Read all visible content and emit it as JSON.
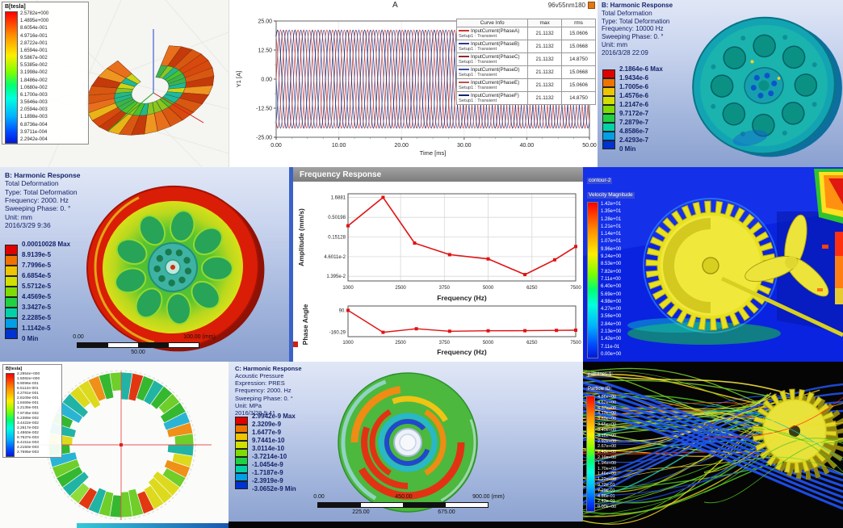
{
  "panels": {
    "field_plot_top_left": {
      "legend_title": "B[tesla]",
      "legend_values": [
        "2.5782e+000",
        "1.4895e+000",
        "8.6054e-001",
        "4.9716e-001",
        "2.8722e-001",
        "1.6594e-001",
        "9.5867e-002",
        "5.5385e-002",
        "3.1998e-002",
        "1.8486e-002",
        "1.0680e-002",
        "6.1700e-003",
        "3.5646e-003",
        "2.0594e-003",
        "1.1898e-003",
        "6.8736e-004",
        "3.9711e-004",
        "2.2942e-004"
      ]
    },
    "current_chart": {
      "title": "A",
      "corner_label": "96v55nm180",
      "ylabel": "Y1 [A]",
      "xlabel": "Time [ms]",
      "y_ticks": [
        "25.00",
        "12.50",
        "0.00",
        "-12.50",
        "-25.00"
      ],
      "x_ticks": [
        "0.00",
        "10.00",
        "20.00",
        "30.00",
        "40.00",
        "50.00"
      ],
      "legend_headers": [
        "Curve Info",
        "max",
        "rms"
      ],
      "legend_rows": [
        {
          "name": "InputCurrent(PhaseA)",
          "setup": "Setup1 : Transient",
          "max": "21.1132",
          "rms": "15.0606",
          "color": "#cc3333"
        },
        {
          "name": "InputCurrent(PhaseB)",
          "setup": "Setup1 : Transient",
          "max": "21.1132",
          "rms": "15.0668",
          "color": "#2b3a8f"
        },
        {
          "name": "InputCurrent(PhaseC)",
          "setup": "Setup1 : Transient",
          "max": "21.1132",
          "rms": "14.8750",
          "color": "#8f2b2b"
        },
        {
          "name": "InputCurrent(PhaseD)",
          "setup": "Setup1 : Transient",
          "max": "21.1132",
          "rms": "15.0668",
          "color": "#3b4fa0"
        },
        {
          "name": "InputCurrent(PhaseE)",
          "setup": "Setup1 : Transient",
          "max": "21.1132",
          "rms": "15.0606",
          "color": "#c05050"
        },
        {
          "name": "InputCurrent(PhaseF)",
          "setup": "Setup1 : Transient",
          "max": "21.1132",
          "rms": "14.8750",
          "color": "#16246e"
        }
      ]
    },
    "harmonic_wheel_right": {
      "header": [
        "B: Harmonic Response",
        "Total Deformation",
        "Type: Total Deformation",
        "Frequency: 10000 Hz",
        "Sweeping Phase: 0. °",
        "Unit: mm",
        "2016/3/28 22:09"
      ],
      "legend": [
        "2.1864e-6 Max",
        "1.9434e-6",
        "1.7005e-6",
        "1.4576e-6",
        "1.2147e-6",
        "9.7172e-7",
        "7.2879e-7",
        "4.8586e-7",
        "2.4293e-7",
        "0 Min"
      ]
    },
    "harmonic_wheel_left": {
      "header": [
        "B: Harmonic Response",
        "Total Deformation",
        "Type: Total Deformation",
        "Frequency: 2000. Hz",
        "Sweeping Phase: 0. °",
        "Unit: mm",
        "2016/3/29 9:36"
      ],
      "legend": [
        "0.00010028 Max",
        "8.9139e-5",
        "7.7996e-5",
        "6.6854e-5",
        "5.5712e-5",
        "4.4569e-5",
        "3.3427e-5",
        "2.2285e-5",
        "1.1142e-5",
        "0 Min"
      ],
      "scale_bar": {
        "left": "0.00",
        "right": "100.00 (mm)",
        "center": "50.00"
      }
    },
    "frequency_response": {
      "window_title": "Frequency Response",
      "amplitude_ylabel": "Amplitude (mm/s)",
      "phase_ylabel": "Phase Angle",
      "xlabel": "Frequency (Hz)",
      "amplitude_y_ticks": [
        "1.6881",
        "0.50198",
        "0.15128",
        "4.6011e-2",
        "1.395e-2"
      ],
      "phase_y_ticks": [
        "90.",
        "-160.29"
      ],
      "x_ticks": [
        "1000",
        "2500",
        "3750",
        "5000",
        "6250",
        "7500"
      ]
    },
    "cfd_contour": {
      "colorbar_title": [
        "contour-2",
        "Velocity Magnitude"
      ],
      "colorbar_values": [
        "1.42e+01",
        "1.35e+01",
        "1.28e+01",
        "1.21e+01",
        "1.14e+01",
        "1.07e+01",
        "9.96e+00",
        "9.24e+00",
        "8.53e+00",
        "7.82e+00",
        "7.11e+00",
        "6.40e+00",
        "5.69e+00",
        "4.98e+00",
        "4.27e+00",
        "3.56e+00",
        "2.84e+00",
        "2.13e+00",
        "1.42e+00",
        "7.11e-01",
        "0.00e+00"
      ]
    },
    "field_plot_bottom_left": {
      "legend_title": "B[tesla]",
      "legend_values": [
        "2.2954e+000",
        "1.5082e+000",
        "9.9096e-001",
        "6.5112e-001",
        "4.2781e-001",
        "2.8109e-001",
        "1.8469e-001",
        "1.2135e-001",
        "7.9735e-002",
        "5.2389e-002",
        "3.4422e-002",
        "2.2617e-002",
        "1.4860e-002",
        "9.7637e-003",
        "6.4151e-003",
        "4.2150e-003",
        "2.7695e-003"
      ]
    },
    "acoustic": {
      "header": [
        "C: Harmonic Response",
        "Acoustic Pressure",
        "Expression: PRES",
        "Frequency: 2000. Hz",
        "Sweeping Phase: 0. °",
        "Unit: MPa",
        "2016/3/29 9:41"
      ],
      "legend": [
        "2.9942e-9 Max",
        "2.3209e-9",
        "1.6477e-9",
        "9.7441e-10",
        "3.0114e-10",
        "-3.7214e-10",
        "-1.0454e-9",
        "-1.7187e-9",
        "-2.3919e-9",
        "-3.0652e-9 Min"
      ],
      "scale_bar": {
        "labels_top": [
          "0.00",
          "450.00",
          "900.00 (mm)"
        ],
        "labels_bottom": [
          "225.00",
          "675.00"
        ]
      }
    },
    "pathlines": {
      "colorbar_title": [
        "pathlines-1",
        "Particle ID"
      ],
      "colorbar_values": [
        "4.86e+00",
        "4.62e+00",
        "4.37e+00",
        "4.13e+00",
        "3.89e+00",
        "3.65e+00",
        "3.40e+00",
        "3.16e+00",
        "2.92e+00",
        "2.67e+00",
        "2.43e+00",
        "2.19e+00",
        "1.94e+00",
        "1.70e+00",
        "1.46e+00",
        "1.22e+00",
        "9.72e-01",
        "7.29e-01",
        "4.86e-01",
        "2.43e-01",
        "0.00e+00"
      ]
    }
  },
  "chart_data": [
    {
      "type": "line",
      "title": "A",
      "subtitle": "96v55nm180",
      "xlabel": "Time [ms]",
      "ylabel": "Y1 [A]",
      "xlim": [
        0,
        50
      ],
      "ylim": [
        -25,
        25
      ],
      "x_ticks": [
        0,
        10,
        20,
        30,
        40,
        50
      ],
      "y_ticks": [
        25,
        12.5,
        0,
        -12.5,
        -25
      ],
      "series": [
        {
          "name": "InputCurrent(PhaseA)",
          "max": 21.1132,
          "rms": 15.0606
        },
        {
          "name": "InputCurrent(PhaseB)",
          "max": 21.1132,
          "rms": 15.0668
        },
        {
          "name": "InputCurrent(PhaseC)",
          "max": 21.1132,
          "rms": 14.875
        },
        {
          "name": "InputCurrent(PhaseD)",
          "max": 21.1132,
          "rms": 15.0668
        },
        {
          "name": "InputCurrent(PhaseE)",
          "max": 21.1132,
          "rms": 15.0606
        },
        {
          "name": "InputCurrent(PhaseF)",
          "max": 21.1132,
          "rms": 14.875
        }
      ],
      "note": "Six sinusoidal phase currents, amplitude ~21.1 A, ~18 cycles over 0-50 ms, phases offset 60 deg"
    },
    {
      "type": "line",
      "title": "Frequency Response - Amplitude",
      "xlabel": "Frequency (Hz)",
      "ylabel": "Amplitude (mm/s)",
      "y_scale": "log",
      "x": [
        1000,
        2000,
        2900,
        3900,
        5000,
        6050,
        6900,
        7500
      ],
      "y": [
        0.3,
        1.6881,
        0.105,
        0.052,
        0.04,
        0.0155,
        0.038,
        0.085
      ],
      "x_ticks": [
        1000,
        2500,
        3750,
        5000,
        6250,
        7500
      ],
      "y_ticks": [
        1.6881,
        0.50198,
        0.15128,
        0.046011,
        0.01395
      ]
    },
    {
      "type": "line",
      "title": "Frequency Response - Phase",
      "xlabel": "Frequency (Hz)",
      "ylabel": "Phase Angle",
      "x": [
        1000,
        2000,
        2950,
        3900,
        5000,
        6050,
        6950,
        7500
      ],
      "y": [
        90,
        -160.29,
        -120,
        -148,
        -143,
        -142,
        -138,
        -136
      ],
      "x_ticks": [
        1000,
        2500,
        3750,
        5000,
        6250,
        7500
      ],
      "y_ticks": [
        90,
        -160.29
      ]
    }
  ]
}
